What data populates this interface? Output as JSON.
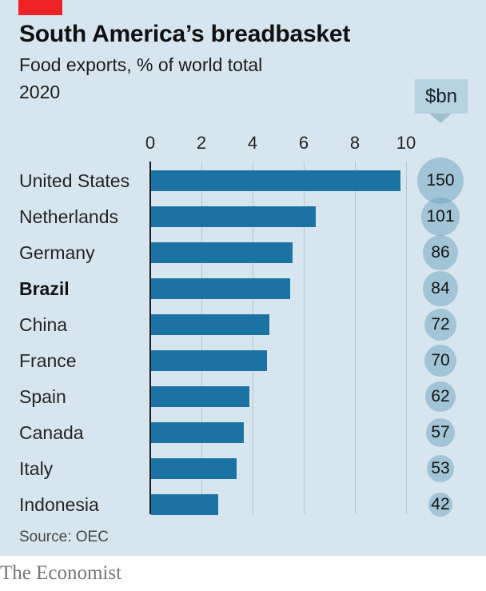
{
  "header": {
    "title": "South America’s breadbasket",
    "subtitle": "Food exports, % of world total",
    "year": "2020"
  },
  "badge": {
    "label": "$bn"
  },
  "chart_data": {
    "type": "bar",
    "orientation": "horizontal",
    "title": "South America’s breadbasket",
    "subtitle": "Food exports, % of world total",
    "year": "2020",
    "categories": [
      "United States",
      "Netherlands",
      "Germany",
      "Brazil",
      "China",
      "France",
      "Spain",
      "Canada",
      "Italy",
      "Indonesia"
    ],
    "series": [
      {
        "name": "Food exports, % of world total",
        "values": [
          9.8,
          6.5,
          5.6,
          5.5,
          4.7,
          4.6,
          3.9,
          3.7,
          3.4,
          2.7
        ]
      },
      {
        "name": "Food exports, $bn",
        "values": [
          150,
          101,
          86,
          84,
          72,
          70,
          62,
          57,
          53,
          42
        ]
      }
    ],
    "bold_category": "Brazil",
    "x_axis": {
      "ticks": [
        0,
        2,
        4,
        6,
        8,
        10
      ],
      "range": [
        0,
        11
      ],
      "grid": true,
      "position": "top"
    },
    "secondary_unit_label": "$bn",
    "legend_position": "none"
  },
  "footer": {
    "source": "Source: OEC",
    "brand": "The Economist"
  },
  "colors": {
    "panel_bg": "#d7e6ee",
    "accent_red": "#ed2224",
    "bar_blue": "#1a73a3",
    "circle_blue": "#a7c8da",
    "badge_blue": "#b7d2e0",
    "gridline": "#b6c3ca",
    "axis": "#1a1a1a"
  }
}
